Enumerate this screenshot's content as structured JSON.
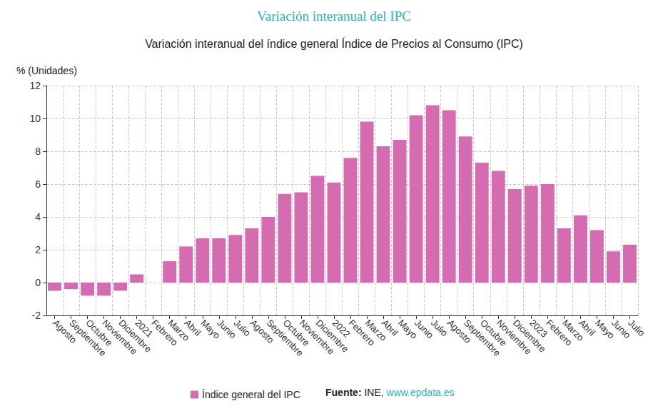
{
  "chart_data": {
    "type": "bar",
    "title": "Variación interanual del IPC",
    "subtitle": "Variación interanual del índice general Índice de Precios al Consumo (IPC)",
    "y_label": "% (Unidades)",
    "categories": [
      "Agosto",
      "Septiembre",
      "Octubre",
      "Noviembre",
      "Diciembre",
      "2021",
      "Febrero",
      "Marzo",
      "Abril",
      "Mayo",
      "Junio",
      "Julio",
      "Agosto",
      "Septiembre",
      "Octubre",
      "Noviembre",
      "Diciembre",
      "2022",
      "Febrero",
      "Marzo",
      "Abril",
      "Mayo",
      "Junio",
      "Julio",
      "Agosto",
      "Septiembre",
      "Octubre",
      "Noviembre",
      "Diciembre",
      "2023",
      "Febrero",
      "Marzo",
      "Abril",
      "Mayo",
      "Junio",
      "Julio"
    ],
    "series": [
      {
        "name": "Índice general del IPC",
        "color": "#d56cb1",
        "values": [
          -0.5,
          -0.4,
          -0.8,
          -0.8,
          -0.5,
          0.5,
          0.0,
          1.3,
          2.2,
          2.7,
          2.7,
          2.9,
          3.3,
          4.0,
          5.4,
          5.5,
          6.5,
          6.1,
          7.6,
          9.8,
          8.3,
          8.7,
          10.2,
          10.8,
          10.5,
          8.9,
          7.3,
          6.8,
          5.7,
          5.9,
          6.0,
          3.3,
          4.1,
          3.2,
          1.9,
          2.3
        ]
      }
    ],
    "ylim": [
      -2,
      12
    ],
    "yticks": [
      -2,
      0,
      2,
      4,
      6,
      8,
      10,
      12
    ],
    "grid": true,
    "legend": "bottom",
    "source_label": "Fuente:",
    "source_text": "INE,",
    "source_link": "www.epdata.es"
  }
}
